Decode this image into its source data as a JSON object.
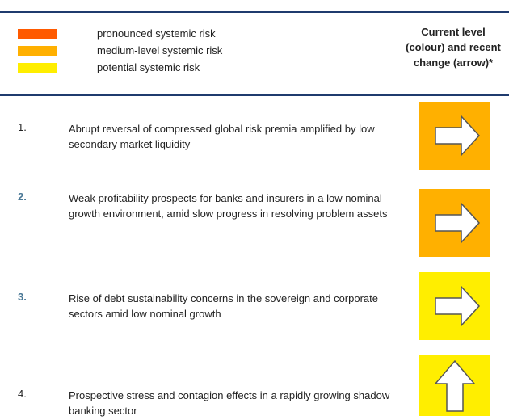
{
  "legend": [
    {
      "label": "pronounced systemic risk",
      "color": "#ff5a00"
    },
    {
      "label": "medium-level systemic risk",
      "color": "#ffb000"
    },
    {
      "label": "potential systemic risk",
      "color": "#ffee00"
    }
  ],
  "header": {
    "title": "Current level (colour) and recent change (arrow)*"
  },
  "rows": [
    {
      "number": "1.",
      "number_color": "#222222",
      "text": "Abrupt reversal of compressed global risk premia amplified by low secondary market liquidity",
      "color": "#ffb000",
      "arrow": "right"
    },
    {
      "number": "2.",
      "number_color": "#4a7896",
      "text": "Weak profitability prospects for banks and insurers in a low nominal growth environment, amid slow progress in resolving problem assets",
      "color": "#ffb000",
      "arrow": "right"
    },
    {
      "number": "3.",
      "number_color": "#4a7896",
      "text": "Rise of debt sustainability concerns in the sovereign and corporate sectors amid low nominal growth",
      "color": "#ffee00",
      "arrow": "right"
    },
    {
      "number": "4.",
      "number_color": "#222222",
      "text": "Prospective stress and contagion effects in a rapidly growing shadow banking sector",
      "color": "#ffee00",
      "arrow": "up"
    }
  ]
}
